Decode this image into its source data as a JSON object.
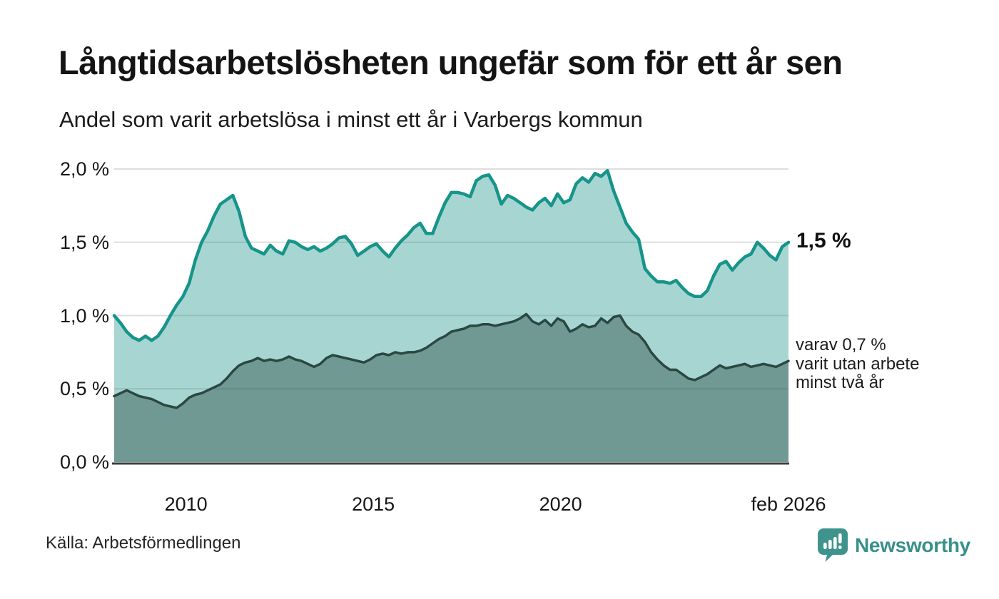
{
  "title": "Långtidsarbetslösheten ungefär som för ett år sen",
  "subtitle": "Andel som varit arbetslösa i minst ett år i Varbergs kommun",
  "source": "Källa: Arbetsförmedlingen",
  "branding": {
    "name": "Newsworthy",
    "icon": "newsworthy-speech-bubble-barchart-icon",
    "color": "#38908a"
  },
  "annotations": {
    "latest_value_label": "1,5 %",
    "secondary_label_lines": [
      "varav 0,7 %",
      "varit utan arbete",
      "minst två år"
    ]
  },
  "chart_data": {
    "type": "area",
    "title": "Långtidsarbetslösheten ungefär som för ett år sen",
    "subtitle": "Andel som varit arbetslösa i minst ett år i Varbergs kommun",
    "unit": "%",
    "grid": true,
    "grid_color": "#dedede",
    "axis_color": "#3d3d3d",
    "ylim": [
      0,
      2.05
    ],
    "y_tick_values": [
      0,
      0.5,
      1.0,
      1.5,
      2.0
    ],
    "y_tick_labels": [
      "0,0 %",
      "0,5 %",
      "1,0 %",
      "1,5 %",
      "2,0 %"
    ],
    "x_domain": [
      "feb 2008",
      "feb 2026"
    ],
    "x_start_year": 2008.083,
    "x_step_months": 2,
    "x_ticks": [
      {
        "label": "2010",
        "year": 2010.0
      },
      {
        "label": "2015",
        "year": 2015.0
      },
      {
        "label": "2020",
        "year": 2020.0
      },
      {
        "label": "feb 2026",
        "year": 2026.083
      }
    ],
    "latest_values": {
      "minst_ett_ar": "1,5 %",
      "minst_tva_ar": "0,7 %"
    },
    "series": [
      {
        "name": "Andel arbetslösa minst ett år",
        "color": "#17948a",
        "fill": "rgba(23,148,138,0.38)",
        "values": [
          1.0,
          0.95,
          0.89,
          0.85,
          0.83,
          0.86,
          0.83,
          0.86,
          0.92,
          1.0,
          1.07,
          1.13,
          1.22,
          1.38,
          1.5,
          1.58,
          1.68,
          1.76,
          1.79,
          1.82,
          1.71,
          1.54,
          1.46,
          1.44,
          1.42,
          1.48,
          1.44,
          1.42,
          1.51,
          1.5,
          1.47,
          1.45,
          1.47,
          1.44,
          1.46,
          1.49,
          1.53,
          1.54,
          1.49,
          1.41,
          1.44,
          1.47,
          1.49,
          1.44,
          1.4,
          1.46,
          1.51,
          1.55,
          1.6,
          1.63,
          1.56,
          1.56,
          1.67,
          1.77,
          1.84,
          1.84,
          1.83,
          1.81,
          1.92,
          1.95,
          1.96,
          1.89,
          1.76,
          1.82,
          1.8,
          1.77,
          1.74,
          1.72,
          1.77,
          1.8,
          1.75,
          1.83,
          1.77,
          1.79,
          1.9,
          1.94,
          1.91,
          1.97,
          1.95,
          1.99,
          1.85,
          1.74,
          1.63,
          1.57,
          1.52,
          1.32,
          1.27,
          1.23,
          1.23,
          1.22,
          1.24,
          1.19,
          1.15,
          1.13,
          1.13,
          1.17,
          1.27,
          1.35,
          1.37,
          1.31,
          1.36,
          1.4,
          1.42,
          1.5,
          1.46,
          1.41,
          1.38,
          1.47,
          1.5
        ]
      },
      {
        "name": "Varav utan arbete minst två år",
        "color": "#2b4740",
        "fill": "rgba(23,55,48,0.38)",
        "values": [
          0.45,
          0.47,
          0.49,
          0.47,
          0.45,
          0.44,
          0.43,
          0.41,
          0.39,
          0.38,
          0.37,
          0.4,
          0.44,
          0.46,
          0.47,
          0.49,
          0.51,
          0.53,
          0.57,
          0.62,
          0.66,
          0.68,
          0.69,
          0.71,
          0.69,
          0.7,
          0.69,
          0.7,
          0.72,
          0.7,
          0.69,
          0.67,
          0.65,
          0.67,
          0.71,
          0.73,
          0.72,
          0.71,
          0.7,
          0.69,
          0.68,
          0.7,
          0.73,
          0.74,
          0.73,
          0.75,
          0.74,
          0.75,
          0.75,
          0.76,
          0.78,
          0.81,
          0.84,
          0.86,
          0.89,
          0.9,
          0.91,
          0.93,
          0.93,
          0.94,
          0.94,
          0.93,
          0.94,
          0.95,
          0.96,
          0.98,
          1.01,
          0.96,
          0.94,
          0.97,
          0.93,
          0.98,
          0.96,
          0.89,
          0.91,
          0.94,
          0.92,
          0.93,
          0.98,
          0.95,
          0.99,
          1.0,
          0.93,
          0.89,
          0.87,
          0.82,
          0.75,
          0.7,
          0.66,
          0.63,
          0.63,
          0.6,
          0.57,
          0.56,
          0.58,
          0.6,
          0.63,
          0.66,
          0.64,
          0.65,
          0.66,
          0.67,
          0.65,
          0.66,
          0.67,
          0.66,
          0.65,
          0.67,
          0.69
        ]
      }
    ]
  }
}
